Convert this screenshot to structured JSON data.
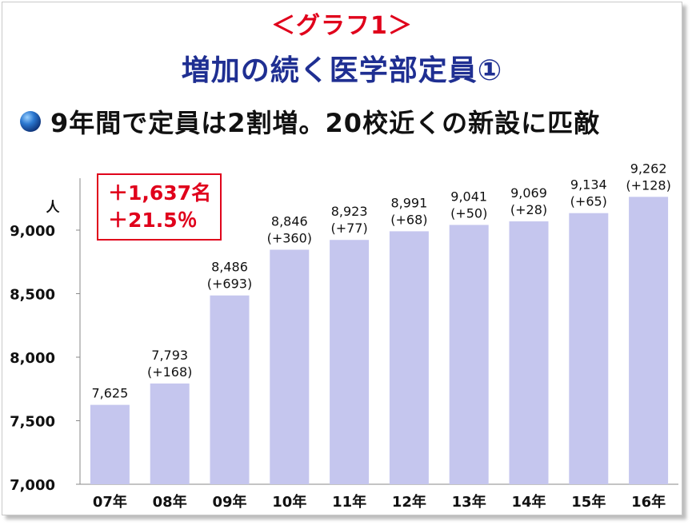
{
  "header": {
    "label": "＜グラフ1＞",
    "title": "増加の続く医学部定員①",
    "subtitle": "9年間で定員は2割増。20校近くの新設に匹敵"
  },
  "annotation": {
    "line1": "＋1,637名",
    "line2": "＋21.5％"
  },
  "colors": {
    "bar": "#c5c6ee",
    "label_red": "#e0001b",
    "title_navy": "#1f2f92"
  },
  "chart_data": {
    "type": "bar",
    "categories": [
      "07年",
      "08年",
      "09年",
      "10年",
      "11年",
      "12年",
      "13年",
      "14年",
      "15年",
      "16年"
    ],
    "values": [
      7625,
      7793,
      8486,
      8846,
      8923,
      8991,
      9041,
      9069,
      9134,
      9262
    ],
    "value_labels": [
      "7,625",
      "7,793",
      "8,486",
      "8,846",
      "8,923",
      "8,991",
      "9,041",
      "9,069",
      "9,134",
      "9,262"
    ],
    "change_labels": [
      "",
      "(+168)",
      "(+693)",
      "(+360)",
      "(+77)",
      "(+68)",
      "(+50)",
      "(+28)",
      "(+65)",
      "(+128)"
    ],
    "ylabel": "人",
    "ylim": [
      7000,
      9250
    ],
    "yticks": [
      7000,
      7500,
      8000,
      8500,
      9000
    ],
    "ytick_labels": [
      "7,000",
      "7,500",
      "8,000",
      "8,500",
      "9,000"
    ],
    "grid": false,
    "legend": "none"
  }
}
